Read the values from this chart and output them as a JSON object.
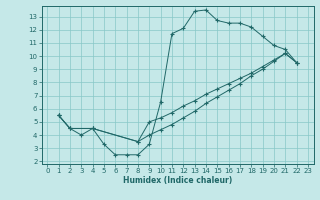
{
  "xlabel": "Humidex (Indice chaleur)",
  "bg_color": "#c5e8e8",
  "grid_color": "#88c8c8",
  "line_color": "#206868",
  "xlim": [
    -0.5,
    23.5
  ],
  "ylim": [
    1.8,
    13.8
  ],
  "xticks": [
    0,
    1,
    2,
    3,
    4,
    5,
    6,
    7,
    8,
    9,
    10,
    11,
    12,
    13,
    14,
    15,
    16,
    17,
    18,
    19,
    20,
    21,
    22,
    23
  ],
  "yticks": [
    2,
    3,
    4,
    5,
    6,
    7,
    8,
    9,
    10,
    11,
    12,
    13
  ],
  "curve1_x": [
    1,
    2,
    3,
    4,
    5,
    6,
    7,
    8,
    9,
    10,
    11,
    12,
    13,
    14,
    15,
    16,
    17,
    18,
    19,
    20,
    21,
    22
  ],
  "curve1_y": [
    5.5,
    4.5,
    4.0,
    4.5,
    3.3,
    2.5,
    2.5,
    2.5,
    3.3,
    6.5,
    11.7,
    12.1,
    13.4,
    13.5,
    12.7,
    12.5,
    12.5,
    12.2,
    11.5,
    10.8,
    10.5,
    9.5
  ],
  "curve2_x": [
    1,
    2,
    4,
    8,
    9,
    10,
    11,
    12,
    13,
    14,
    15,
    16,
    17,
    18,
    19,
    20,
    21,
    22
  ],
  "curve2_y": [
    5.5,
    4.5,
    4.5,
    3.5,
    5.0,
    5.3,
    5.7,
    6.2,
    6.6,
    7.1,
    7.5,
    7.9,
    8.3,
    8.7,
    9.2,
    9.7,
    10.2,
    9.5
  ],
  "curve3_x": [
    1,
    2,
    4,
    8,
    9,
    10,
    11,
    12,
    13,
    14,
    15,
    16,
    17,
    18,
    19,
    20,
    21,
    22
  ],
  "curve3_y": [
    5.5,
    4.5,
    4.5,
    3.5,
    4.0,
    4.4,
    4.8,
    5.3,
    5.8,
    6.4,
    6.9,
    7.4,
    7.9,
    8.5,
    9.0,
    9.6,
    10.2,
    9.5
  ]
}
